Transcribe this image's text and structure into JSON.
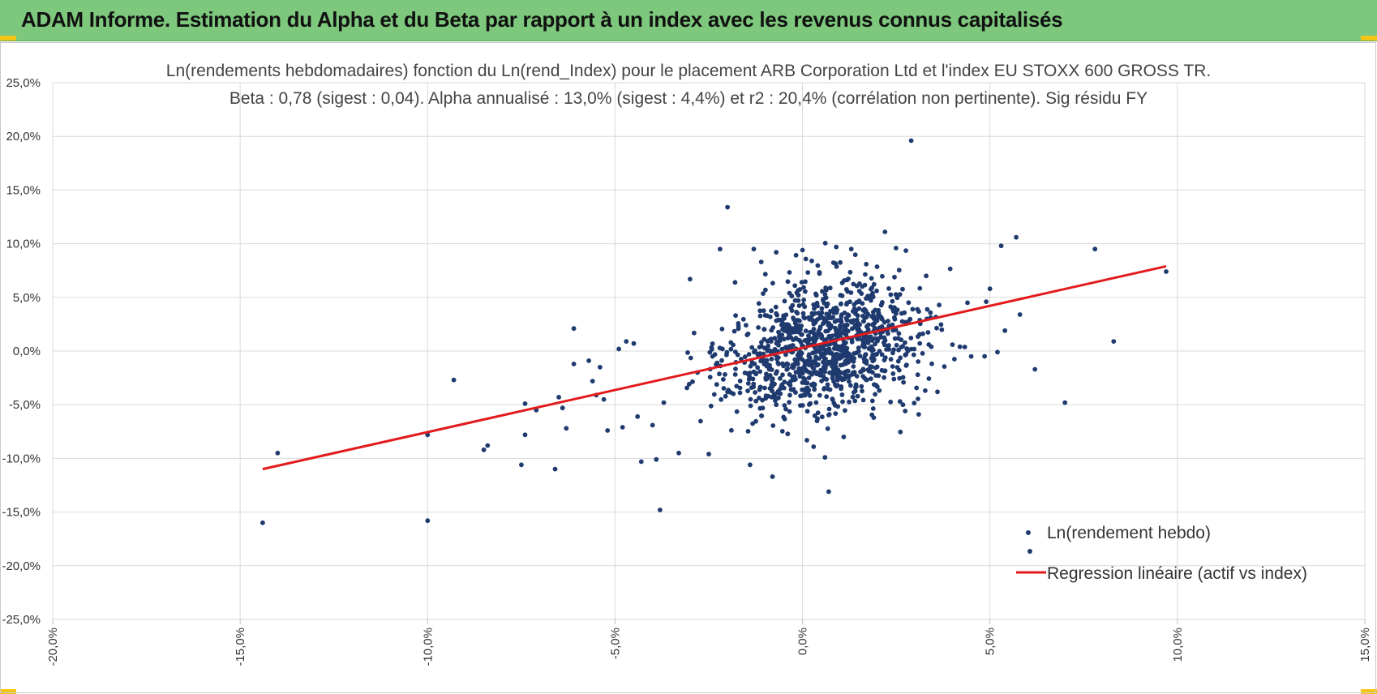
{
  "header": {
    "title": "ADAM Informe. Estimation du Alpha et du Beta par rapport à un index avec les revenus connus capitalisés",
    "accent": "#7dc87d"
  },
  "chart_data": {
    "type": "scatter",
    "title": "Ln(rendements hebdomadaires) fonction du Ln(rend_Index) pour le placement ARB Corporation Ltd et l'index EU STOXX 600 GROSS TR.",
    "subtitle": "Beta : 0,78 (sigest : 0,04). Alpha annualisé : 13,0% (sigest : 4,4%) et r2 : 20,4% (corrélation non pertinente). Sig résidu FY",
    "xlabel": "",
    "ylabel": "",
    "xlim": [
      -0.2,
      0.15
    ],
    "ylim": [
      -0.25,
      0.25
    ],
    "grid": true,
    "legend_position": "bottom-right",
    "x_ticks": [
      "-20,0%",
      "-15,0%",
      "-10,0%",
      "-5,0%",
      "0,0%",
      "5,0%",
      "10,0%",
      "15,0%"
    ],
    "y_ticks": [
      "25,0%",
      "20,0%",
      "15,0%",
      "10,0%",
      "5,0%",
      "0,0%",
      "-5,0%",
      "-10,0%",
      "-15,0%",
      "-20,0%",
      "-25,0%"
    ],
    "series": [
      {
        "name": "Ln(rendement hebdo)",
        "kind": "points",
        "color": "#1f3a6e",
        "note_cluster": "plus ~1100 points concentrated around (0.005, 0.005)",
        "points": [
          [
            -0.144,
            -0.16
          ],
          [
            -0.14,
            -0.095
          ],
          [
            -0.1,
            -0.158
          ],
          [
            -0.1,
            -0.078
          ],
          [
            -0.093,
            -0.027
          ],
          [
            -0.085,
            -0.092
          ],
          [
            -0.084,
            -0.088
          ],
          [
            -0.075,
            -0.106
          ],
          [
            -0.074,
            -0.049
          ],
          [
            -0.074,
            -0.078
          ],
          [
            -0.071,
            -0.055
          ],
          [
            -0.066,
            -0.11
          ],
          [
            -0.065,
            -0.043
          ],
          [
            -0.064,
            -0.053
          ],
          [
            -0.063,
            -0.072
          ],
          [
            -0.061,
            0.021
          ],
          [
            -0.061,
            -0.012
          ],
          [
            -0.057,
            -0.009
          ],
          [
            -0.056,
            -0.028
          ],
          [
            -0.055,
            -0.041
          ],
          [
            -0.054,
            -0.015
          ],
          [
            -0.053,
            -0.045
          ],
          [
            -0.052,
            -0.074
          ],
          [
            -0.049,
            0.002
          ],
          [
            -0.048,
            -0.071
          ],
          [
            -0.047,
            0.009
          ],
          [
            -0.045,
            0.007
          ],
          [
            -0.044,
            -0.061
          ],
          [
            -0.043,
            -0.103
          ],
          [
            -0.04,
            -0.069
          ],
          [
            -0.039,
            -0.101
          ],
          [
            -0.038,
            -0.148
          ],
          [
            -0.037,
            -0.048
          ],
          [
            -0.033,
            -0.095
          ],
          [
            -0.03,
            0.067
          ],
          [
            -0.028,
            -0.02
          ],
          [
            -0.025,
            -0.096
          ],
          [
            -0.024,
            -0.005
          ],
          [
            -0.022,
            0.095
          ],
          [
            -0.02,
            0.134
          ],
          [
            -0.02,
            -0.038
          ],
          [
            -0.018,
            0.064
          ],
          [
            -0.014,
            -0.106
          ],
          [
            -0.013,
            0.095
          ],
          [
            -0.011,
            0.083
          ],
          [
            -0.008,
            -0.117
          ],
          [
            -0.007,
            0.092
          ],
          [
            -0.007,
            -0.05
          ],
          [
            0.0,
            0.094
          ],
          [
            0.004,
            -0.063
          ],
          [
            0.006,
            -0.099
          ],
          [
            0.007,
            -0.131
          ],
          [
            0.009,
            0.097
          ],
          [
            0.011,
            -0.08
          ],
          [
            0.013,
            0.095
          ],
          [
            0.017,
            0.081
          ],
          [
            0.019,
            -0.062
          ],
          [
            0.022,
            0.111
          ],
          [
            0.026,
            -0.047
          ],
          [
            0.029,
            0.196
          ],
          [
            0.031,
            -0.059
          ],
          [
            0.033,
            0.07
          ],
          [
            0.036,
            -0.038
          ],
          [
            0.04,
            0.006
          ],
          [
            0.042,
            0.004
          ],
          [
            0.044,
            0.045
          ],
          [
            0.045,
            -0.005
          ],
          [
            0.049,
            0.046
          ],
          [
            0.05,
            0.058
          ],
          [
            0.052,
            -0.001
          ],
          [
            0.053,
            0.098
          ],
          [
            0.054,
            0.019
          ],
          [
            0.057,
            0.106
          ],
          [
            0.058,
            0.034
          ],
          [
            0.062,
            -0.017
          ],
          [
            0.07,
            -0.048
          ],
          [
            0.078,
            0.095
          ],
          [
            0.083,
            0.009
          ],
          [
            0.097,
            0.074
          ]
        ]
      },
      {
        "name": "Regression linéaire (actif vs index)",
        "kind": "line",
        "color": "#e31a1c",
        "points": [
          [
            -0.144,
            -0.11
          ],
          [
            0.097,
            0.079
          ]
        ]
      }
    ]
  }
}
